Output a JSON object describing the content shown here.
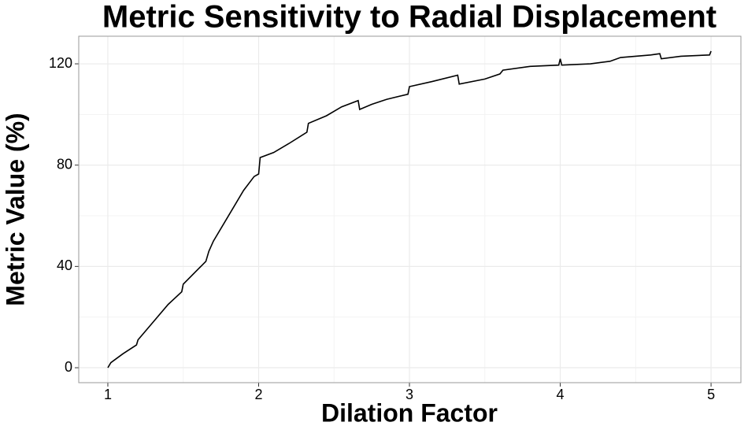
{
  "chart_data": {
    "type": "line",
    "title": "Metric Sensitivity to Radial Displacement",
    "x_label": "Dilation Factor",
    "y_label": "Metric Value (%)",
    "x": [
      1.0,
      1.02,
      1.1,
      1.19,
      1.2,
      1.3,
      1.4,
      1.49,
      1.5,
      1.6,
      1.65,
      1.67,
      1.7,
      1.8,
      1.9,
      1.97,
      2.0,
      2.01,
      2.1,
      2.2,
      2.32,
      2.33,
      2.45,
      2.55,
      2.66,
      2.67,
      2.75,
      2.85,
      2.99,
      3.0,
      3.15,
      3.32,
      3.33,
      3.5,
      3.6,
      3.62,
      3.8,
      3.99,
      4.0,
      4.01,
      4.2,
      4.33,
      4.4,
      4.6,
      4.66,
      4.67,
      4.8,
      4.99,
      5.0
    ],
    "values": [
      0,
      2,
      5.5,
      9,
      11,
      18,
      25,
      30,
      33,
      39,
      42,
      46,
      50,
      60,
      70,
      75.5,
      76.5,
      83,
      85,
      88.5,
      93,
      96.5,
      99.5,
      103,
      105.5,
      102,
      104,
      106,
      108,
      111,
      113,
      115.5,
      112,
      114,
      116,
      117.5,
      119,
      119.5,
      122,
      119.5,
      120,
      121,
      122.5,
      123.5,
      124,
      122,
      123,
      123.5,
      125
    ],
    "color": "#000000",
    "xlim": [
      0.807,
      5.198
    ],
    "xticks": [
      1,
      2,
      3,
      4,
      5
    ],
    "ylim": [
      -5.9,
      130.9
    ],
    "yticks": [
      0,
      40,
      80,
      120
    ],
    "grid": true,
    "minor_grid": true
  }
}
